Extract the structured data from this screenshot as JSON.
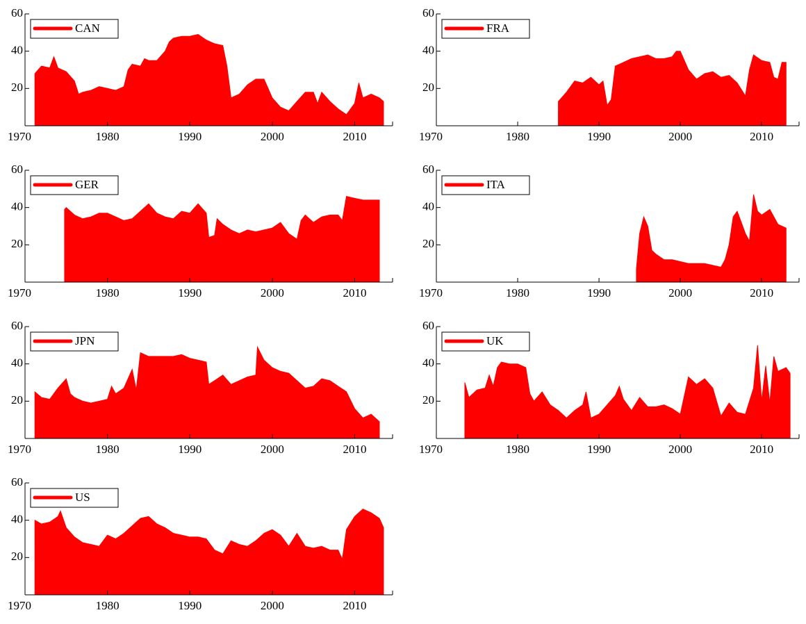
{
  "chart_data": [
    {
      "type": "area",
      "xlim": [
        1970,
        2014.6
      ],
      "ylim": [
        0,
        60
      ],
      "xticks": [
        1970,
        1980,
        1990,
        2000,
        2010
      ],
      "yticks": [
        20,
        40,
        60
      ],
      "x": [
        1971.2,
        1972,
        1973,
        1973.5,
        1974,
        1975,
        1976,
        1976.5,
        1977,
        1978,
        1979,
        1980,
        1981,
        1982,
        1982.5,
        1983,
        1984,
        1984.5,
        1985,
        1986,
        1987,
        1987.5,
        1988,
        1989,
        1990,
        1991,
        1992,
        1993,
        1994,
        1994.5,
        1995,
        1996,
        1997,
        1998,
        1999,
        2000,
        2001,
        2002,
        2003,
        2004,
        2005,
        2005.5,
        2006,
        2007,
        2008,
        2009,
        2010,
        2010.5,
        2011,
        2012,
        2013,
        2013.5
      ],
      "series": [
        {
          "name": "CAN",
          "color": "#ff0000",
          "values": [
            28,
            32,
            31,
            37,
            31,
            29,
            24,
            17,
            18,
            19,
            21,
            20,
            19,
            21,
            30,
            33,
            32,
            36,
            35,
            35,
            40,
            45,
            47,
            48,
            48,
            49,
            46,
            44,
            43,
            32,
            15,
            17,
            22,
            25,
            25,
            15,
            10,
            8,
            13,
            18,
            18,
            12,
            18,
            13,
            9,
            6,
            12,
            23,
            15,
            17,
            15,
            13
          ]
        }
      ]
    },
    {
      "type": "area",
      "xlim": [
        1970,
        2014.6
      ],
      "ylim": [
        0,
        60
      ],
      "xticks": [
        1970,
        1980,
        1990,
        2000,
        2010
      ],
      "yticks": [
        20,
        40,
        60
      ],
      "x": [
        1985,
        1986,
        1987,
        1988,
        1989,
        1990,
        1990.5,
        1991,
        1991.5,
        1992,
        1993,
        1994,
        1995,
        1996,
        1997,
        1998,
        1999,
        1999.5,
        2000,
        2001,
        2002,
        2003,
        2004,
        2005,
        2006,
        2007,
        2008,
        2008.5,
        2009,
        2010,
        2011,
        2011.5,
        2012,
        2012.5,
        2013
      ],
      "series": [
        {
          "name": "FRA",
          "color": "#ff0000",
          "values": [
            13,
            18,
            24,
            23,
            26,
            22,
            24,
            11,
            14,
            32,
            34,
            36,
            37,
            38,
            36,
            36,
            37,
            40,
            40,
            30,
            25,
            28,
            29,
            26,
            27,
            23,
            16,
            30,
            38,
            35,
            34,
            26,
            25,
            34,
            34
          ]
        }
      ]
    },
    {
      "type": "area",
      "xlim": [
        1970,
        2014.6
      ],
      "ylim": [
        0,
        60
      ],
      "xticks": [
        1970,
        1980,
        1990,
        2000,
        2010
      ],
      "yticks": [
        20,
        40,
        60
      ],
      "x": [
        1974.8,
        1975,
        1976,
        1977,
        1978,
        1979,
        1980,
        1981,
        1982,
        1983,
        1984,
        1985,
        1986,
        1987,
        1988,
        1989,
        1990,
        1991,
        1992,
        1992.3,
        1993,
        1993.3,
        1994,
        1995,
        1996,
        1997,
        1998,
        1999,
        2000,
        2001,
        2002,
        2003,
        2003.5,
        2004,
        2005,
        2006,
        2007,
        2008,
        2008.5,
        2009,
        2010,
        2011,
        2012,
        2013
      ],
      "series": [
        {
          "name": "GER",
          "color": "#ff0000",
          "values": [
            39,
            40,
            36,
            34,
            35,
            37,
            37,
            35,
            33,
            34,
            38,
            42,
            37,
            35,
            34,
            38,
            37,
            42,
            37,
            24,
            25,
            34,
            31,
            28,
            26,
            28,
            27,
            28,
            29,
            32,
            26,
            23,
            33,
            36,
            32,
            35,
            36,
            36,
            33,
            46,
            45,
            44,
            44,
            44
          ]
        }
      ]
    },
    {
      "type": "area",
      "xlim": [
        1970,
        2014.6
      ],
      "ylim": [
        0,
        60
      ],
      "xticks": [
        1970,
        1980,
        1990,
        2000,
        2010
      ],
      "yticks": [
        20,
        40,
        60
      ],
      "x": [
        1994.6,
        1995,
        1995.5,
        1996,
        1996.5,
        1997,
        1998,
        1999,
        2000,
        2001,
        2002,
        2003,
        2004,
        2005,
        2005.5,
        2006,
        2006.5,
        2007,
        2008,
        2008.5,
        2009,
        2009.5,
        2010,
        2011,
        2012,
        2013
      ],
      "series": [
        {
          "name": "ITA",
          "color": "#ff0000",
          "values": [
            7,
            26,
            35,
            30,
            17,
            15,
            12,
            12,
            11,
            10,
            10,
            10,
            9,
            8,
            12,
            20,
            35,
            38,
            26,
            22,
            47,
            38,
            36,
            39,
            31,
            29
          ]
        }
      ]
    },
    {
      "type": "area",
      "xlim": [
        1970,
        2014.6
      ],
      "ylim": [
        0,
        60
      ],
      "xticks": [
        1970,
        1980,
        1990,
        2000,
        2010
      ],
      "yticks": [
        20,
        40,
        60
      ],
      "x": [
        1971.2,
        1972,
        1973,
        1974,
        1975,
        1975.5,
        1976,
        1977,
        1978,
        1979,
        1980,
        1980.5,
        1981,
        1982,
        1983,
        1983.5,
        1984,
        1985,
        1986,
        1987,
        1988,
        1989,
        1990,
        1991,
        1992,
        1992.3,
        1993,
        1994,
        1995,
        1996,
        1997,
        1998,
        1998.2,
        1999,
        2000,
        2001,
        2002,
        2003,
        2004,
        2005,
        2006,
        2007,
        2008,
        2009,
        2010,
        2011,
        2012,
        2013
      ],
      "series": [
        {
          "name": "JPN",
          "color": "#ff0000",
          "values": [
            25,
            22,
            21,
            27,
            32,
            24,
            22,
            20,
            19,
            20,
            21,
            28,
            24,
            27,
            37,
            26,
            46,
            44,
            44,
            44,
            44,
            45,
            43,
            42,
            41,
            29,
            31,
            34,
            29,
            31,
            33,
            34,
            49,
            42,
            38,
            36,
            35,
            31,
            27,
            28,
            32,
            31,
            28,
            25,
            16,
            11,
            13,
            9
          ]
        }
      ]
    },
    {
      "type": "area",
      "xlim": [
        1970,
        2014.6
      ],
      "ylim": [
        0,
        60
      ],
      "xticks": [
        1970,
        1980,
        1990,
        2000,
        2010
      ],
      "yticks": [
        20,
        40,
        60
      ],
      "x": [
        1973.5,
        1974,
        1975,
        1976,
        1976.5,
        1977,
        1977.5,
        1978,
        1979,
        1980,
        1981,
        1981.5,
        1982,
        1983,
        1984,
        1985,
        1986,
        1987,
        1988,
        1988.4,
        1989,
        1990,
        1991,
        1992,
        1992.5,
        1993,
        1994,
        1995,
        1996,
        1997,
        1998,
        1999,
        2000,
        2001,
        2002,
        2003,
        2004,
        2005,
        2006,
        2007,
        2008,
        2009,
        2009.5,
        2010,
        2010.5,
        2011,
        2011.5,
        2012,
        2013,
        2013.5
      ],
      "series": [
        {
          "name": "UK",
          "color": "#ff0000",
          "values": [
            30,
            22,
            26,
            27,
            34,
            28,
            38,
            41,
            40,
            40,
            38,
            24,
            20,
            25,
            18,
            15,
            11,
            15,
            18,
            25,
            11,
            13,
            18,
            23,
            28,
            21,
            15,
            22,
            17,
            17,
            18,
            16,
            13,
            33,
            29,
            32,
            27,
            12,
            19,
            14,
            13,
            27,
            50,
            20,
            39,
            19,
            44,
            36,
            38,
            35
          ]
        }
      ]
    },
    {
      "type": "area",
      "xlim": [
        1970,
        2014.6
      ],
      "ylim": [
        0,
        60
      ],
      "xticks": [
        1970,
        1980,
        1990,
        2000,
        2010
      ],
      "yticks": [
        20,
        40,
        60
      ],
      "x": [
        1971.2,
        1972,
        1973,
        1974,
        1974.3,
        1975,
        1976,
        1977,
        1978,
        1979,
        1980,
        1981,
        1982,
        1983,
        1984,
        1985,
        1986,
        1987,
        1988,
        1989,
        1990,
        1991,
        1992,
        1993,
        1994,
        1995,
        1996,
        1997,
        1998,
        1999,
        2000,
        2001,
        2002,
        2003,
        2004,
        2005,
        2006,
        2007,
        2008,
        2008.5,
        2009,
        2010,
        2011,
        2012,
        2013,
        2013.5
      ],
      "series": [
        {
          "name": "US",
          "color": "#ff0000",
          "values": [
            40,
            38,
            39,
            42,
            45,
            36,
            31,
            28,
            27,
            26,
            32,
            30,
            33,
            37,
            41,
            42,
            38,
            36,
            33,
            32,
            31,
            31,
            30,
            24,
            22,
            29,
            27,
            26,
            29,
            33,
            35,
            32,
            26,
            33,
            26,
            25,
            26,
            24,
            24,
            19,
            35,
            42,
            46,
            44,
            41,
            36
          ]
        }
      ]
    }
  ]
}
